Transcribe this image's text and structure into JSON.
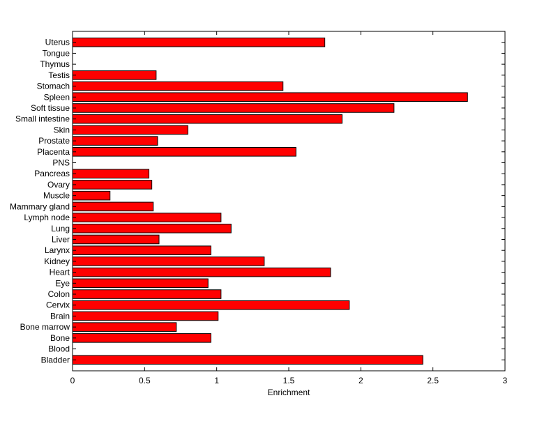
{
  "chart_data": {
    "type": "bar",
    "orientation": "horizontal",
    "title": "",
    "xlabel": "Enrichment",
    "ylabel": "",
    "xlim": [
      0,
      3
    ],
    "xticks": [
      0,
      0.5,
      1,
      1.5,
      2,
      2.5,
      3
    ],
    "xtick_labels": [
      "0",
      "0.5",
      "1",
      "1.5",
      "2",
      "2.5",
      "3"
    ],
    "grid": false,
    "bar_color": "#ff0000",
    "edge_color": "#000000",
    "categories": [
      "Bladder",
      "Blood",
      "Bone",
      "Bone marrow",
      "Brain",
      "Cervix",
      "Colon",
      "Eye",
      "Heart",
      "Kidney",
      "Larynx",
      "Liver",
      "Lung",
      "Lymph node",
      "Mammary gland",
      "Muscle",
      "Ovary",
      "Pancreas",
      "PNS",
      "Placenta",
      "Prostate",
      "Skin",
      "Small intestine",
      "Soft tissue",
      "Spleen",
      "Stomach",
      "Testis",
      "Thymus",
      "Tongue",
      "Uterus"
    ],
    "values": [
      2.43,
      0,
      0.96,
      0.72,
      1.01,
      1.92,
      1.03,
      0.94,
      1.79,
      1.33,
      0.96,
      0.6,
      1.1,
      1.03,
      0.56,
      0.26,
      0.55,
      0.53,
      0,
      1.55,
      0.59,
      0.8,
      1.87,
      2.23,
      2.74,
      1.46,
      0.58,
      0,
      0,
      1.75
    ]
  }
}
